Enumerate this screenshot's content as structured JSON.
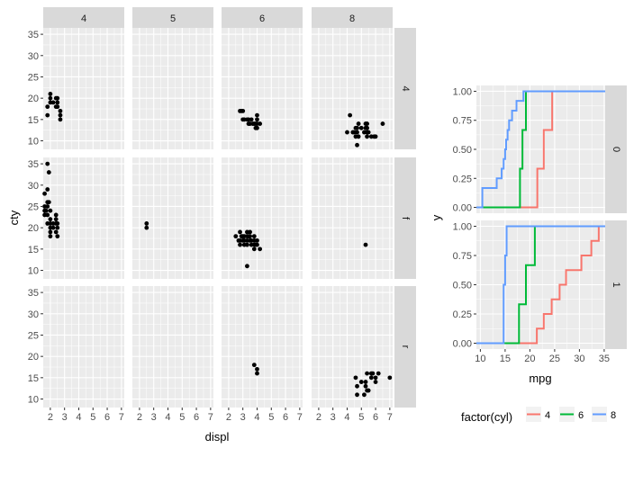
{
  "chart_data": [
    {
      "type": "scatter",
      "facet": "grid",
      "xlabel": "displ",
      "ylabel": "cty",
      "xlim": [
        1.5,
        7.2
      ],
      "ylim": [
        8,
        36.5
      ],
      "x_ticks": [
        2,
        3,
        4,
        5,
        6,
        7
      ],
      "y_ticks": [
        10,
        15,
        20,
        25,
        30,
        35
      ],
      "col_strips": [
        "4",
        "5",
        "6",
        "8"
      ],
      "row_strips": [
        "4",
        "f",
        "r"
      ],
      "panels": [
        {
          "row": "4",
          "col": "4",
          "points": [
            [
              1.8,
              18
            ],
            [
              1.8,
              16
            ],
            [
              2.0,
              20
            ],
            [
              2.0,
              19
            ],
            [
              2.0,
              21
            ],
            [
              2.2,
              19
            ],
            [
              2.4,
              18
            ],
            [
              2.4,
              20
            ],
            [
              2.5,
              19
            ],
            [
              2.5,
              18
            ],
            [
              2.7,
              17
            ],
            [
              2.7,
              16
            ],
            [
              2.7,
              15
            ],
            [
              2.5,
              20
            ]
          ]
        },
        {
          "row": "4",
          "col": "5",
          "points": []
        },
        {
          "row": "4",
          "col": "6",
          "points": [
            [
              2.8,
              17
            ],
            [
              2.9,
              17
            ],
            [
              3.0,
              15
            ],
            [
              3.1,
              15
            ],
            [
              3.3,
              15
            ],
            [
              3.4,
              15
            ],
            [
              3.4,
              14
            ],
            [
              3.6,
              15
            ],
            [
              3.7,
              14
            ],
            [
              3.8,
              14
            ],
            [
              3.9,
              14
            ],
            [
              4.0,
              14
            ],
            [
              4.0,
              15
            ],
            [
              4.0,
              16
            ],
            [
              4.0,
              13
            ],
            [
              4.2,
              14
            ],
            [
              3.9,
              13
            ],
            [
              3.0,
              17
            ],
            [
              3.5,
              14
            ]
          ]
        },
        {
          "row": "4",
          "col": "8",
          "points": [
            [
              4.2,
              16
            ],
            [
              4.4,
              12
            ],
            [
              4.5,
              12
            ],
            [
              4.6,
              13
            ],
            [
              4.6,
              11
            ],
            [
              4.7,
              12
            ],
            [
              4.7,
              13
            ],
            [
              4.8,
              14
            ],
            [
              4.8,
              11
            ],
            [
              5.0,
              13
            ],
            [
              5.2,
              12
            ],
            [
              5.3,
              14
            ],
            [
              5.3,
              13
            ],
            [
              5.4,
              11
            ],
            [
              5.4,
              12
            ],
            [
              5.4,
              13
            ],
            [
              5.5,
              12
            ],
            [
              5.7,
              11
            ],
            [
              5.9,
              11
            ],
            [
              6.0,
              11
            ],
            [
              6.5,
              14
            ],
            [
              4.7,
              9
            ],
            [
              5.4,
              14
            ],
            [
              4.0,
              12
            ]
          ]
        },
        {
          "row": "f",
          "col": "4",
          "points": [
            [
              1.6,
              28
            ],
            [
              1.6,
              24
            ],
            [
              1.6,
              25
            ],
            [
              1.7,
              24
            ],
            [
              1.8,
              29
            ],
            [
              1.8,
              26
            ],
            [
              1.9,
              33
            ],
            [
              1.8,
              35
            ],
            [
              1.8,
              23
            ],
            [
              1.8,
              21
            ],
            [
              1.9,
              26
            ],
            [
              2.0,
              21
            ],
            [
              2.0,
              20
            ],
            [
              2.0,
              19
            ],
            [
              2.0,
              22
            ],
            [
              2.0,
              24
            ],
            [
              2.2,
              21
            ],
            [
              2.4,
              21
            ],
            [
              2.4,
              22
            ],
            [
              2.4,
              19
            ],
            [
              2.5,
              18
            ],
            [
              2.5,
              20
            ],
            [
              2.0,
              18
            ],
            [
              1.8,
              25
            ],
            [
              1.6,
              23
            ],
            [
              2.4,
              23
            ],
            [
              2.5,
              21
            ],
            [
              2.2,
              20
            ]
          ]
        },
        {
          "row": "f",
          "col": "5",
          "points": [
            [
              2.5,
              21
            ],
            [
              2.5,
              20
            ]
          ]
        },
        {
          "row": "f",
          "col": "6",
          "points": [
            [
              2.5,
              18
            ],
            [
              2.7,
              17
            ],
            [
              2.8,
              16
            ],
            [
              2.8,
              17
            ],
            [
              2.9,
              18
            ],
            [
              3.0,
              18
            ],
            [
              3.0,
              17
            ],
            [
              3.1,
              18
            ],
            [
              3.1,
              17
            ],
            [
              3.3,
              18
            ],
            [
              3.3,
              17
            ],
            [
              3.3,
              16
            ],
            [
              3.3,
              19
            ],
            [
              3.5,
              18
            ],
            [
              3.5,
              17
            ],
            [
              3.5,
              19
            ],
            [
              3.6,
              17
            ],
            [
              3.6,
              16
            ],
            [
              3.8,
              18
            ],
            [
              3.8,
              17
            ],
            [
              3.8,
              16
            ],
            [
              3.8,
              15
            ],
            [
              3.9,
              16
            ],
            [
              4.0,
              16
            ],
            [
              4.0,
              17
            ],
            [
              4.2,
              15
            ],
            [
              3.3,
              11
            ],
            [
              3.1,
              16
            ],
            [
              3.4,
              18
            ],
            [
              2.8,
              19
            ]
          ]
        },
        {
          "row": "f",
          "col": "8",
          "points": [
            [
              5.3,
              16
            ]
          ]
        },
        {
          "row": "r",
          "col": "4",
          "points": []
        },
        {
          "row": "r",
          "col": "5",
          "points": []
        },
        {
          "row": "r",
          "col": "6",
          "points": [
            [
              3.8,
              18
            ],
            [
              4.0,
              17
            ],
            [
              4.0,
              16
            ]
          ]
        },
        {
          "row": "r",
          "col": "8",
          "points": [
            [
              4.6,
              15
            ],
            [
              4.7,
              13
            ],
            [
              4.7,
              11
            ],
            [
              5.2,
              11
            ],
            [
              5.3,
              14
            ],
            [
              5.3,
              13
            ],
            [
              5.4,
              12
            ],
            [
              5.4,
              16
            ],
            [
              5.7,
              15
            ],
            [
              5.7,
              16
            ],
            [
              6.0,
              15
            ],
            [
              6.2,
              16
            ],
            [
              7.0,
              15
            ],
            [
              5.0,
              14
            ],
            [
              5.5,
              12
            ],
            [
              6.0,
              14
            ],
            [
              5.8,
              16
            ]
          ]
        }
      ]
    },
    {
      "type": "line",
      "step": true,
      "facet": "rows",
      "xlabel": "mpg",
      "ylabel": "y",
      "xlim": [
        9.2,
        35.2
      ],
      "ylim": [
        -0.05,
        1.05
      ],
      "x_ticks": [
        10,
        15,
        20,
        25,
        30,
        35
      ],
      "y_ticks": [
        0.0,
        0.25,
        0.5,
        0.75,
        1.0
      ],
      "y_tick_labels": [
        "0.00",
        "0.25",
        "0.50",
        "0.75",
        "1.00"
      ],
      "row_strips": [
        "0",
        "1"
      ],
      "legend": {
        "title": "factor(cyl)",
        "position": "bottom",
        "entries": [
          "4",
          "6",
          "8"
        ]
      },
      "colors": {
        "4": "#F8766D",
        "6": "#00BA38",
        "8": "#619CFF"
      },
      "panels": [
        {
          "row": "0",
          "series": [
            {
              "name": "4",
              "x": [
                21.5,
                22.8,
                24.5,
                26.0
              ],
              "y": [
                0.333,
                0.667,
                1.0,
                1.0
              ]
            },
            {
              "name": "6",
              "x": [
                18.0,
                18.5,
                19.2,
                21.0
              ],
              "y": [
                0.333,
                0.667,
                1.0,
                1.0
              ]
            },
            {
              "name": "8",
              "x": [
                10.4,
                13.3,
                14.3,
                14.7,
                15.0,
                15.2,
                15.5,
                15.8,
                16.4,
                17.3,
                18.7,
                19.2
              ],
              "y": [
                0.167,
                0.25,
                0.333,
                0.417,
                0.5,
                0.583,
                0.667,
                0.75,
                0.833,
                0.917,
                1.0,
                1.0
              ]
            }
          ]
        },
        {
          "row": "1",
          "series": [
            {
              "name": "4",
              "x": [
                21.4,
                22.8,
                24.4,
                26.0,
                27.3,
                30.4,
                32.4,
                33.9
              ],
              "y": [
                0.125,
                0.25,
                0.375,
                0.5,
                0.625,
                0.75,
                0.875,
                1.0
              ]
            },
            {
              "name": "6",
              "x": [
                17.8,
                19.2,
                21.0
              ],
              "y": [
                0.333,
                0.667,
                1.0
              ]
            },
            {
              "name": "8",
              "x": [
                14.7,
                15.0,
                15.3
              ],
              "y": [
                0.5,
                0.75,
                1.0
              ]
            }
          ]
        }
      ]
    }
  ]
}
